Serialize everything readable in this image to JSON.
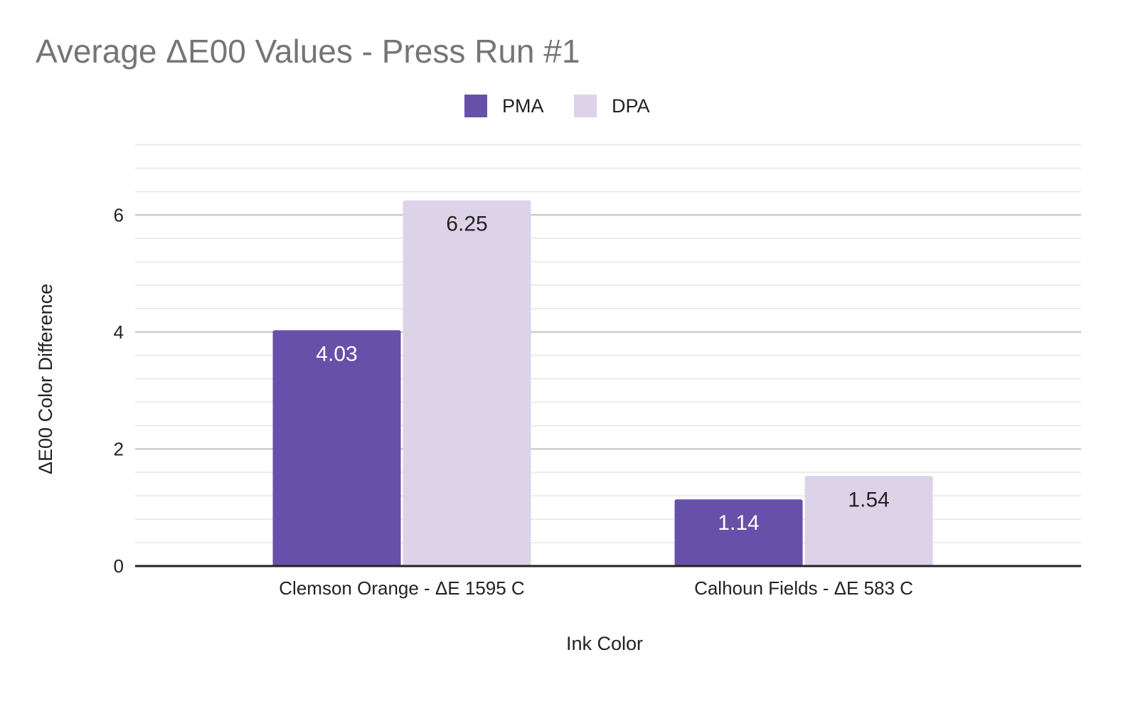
{
  "chart_data": {
    "type": "bar",
    "title": "Average ΔE00 Values - Press Run #1",
    "xlabel": "Ink Color",
    "ylabel": "ΔE00 Color Difference",
    "categories": [
      "Clemson Orange - ΔE 1595 C",
      "Calhoun Fields - ΔE 583 C"
    ],
    "series": [
      {
        "name": "PMA",
        "values": [
          4.03,
          1.14
        ],
        "color": "#6750a9",
        "label_color": "#ffffff"
      },
      {
        "name": "DPA",
        "values": [
          6.25,
          1.54
        ],
        "color": "#dcd3e9",
        "label_color": "#222222"
      }
    ],
    "ylim": [
      0,
      7
    ],
    "major_ticks": [
      0,
      2,
      4,
      6
    ],
    "minor_step": 0.4,
    "grid": true,
    "legend_position": "top-center",
    "data_labels": true
  }
}
